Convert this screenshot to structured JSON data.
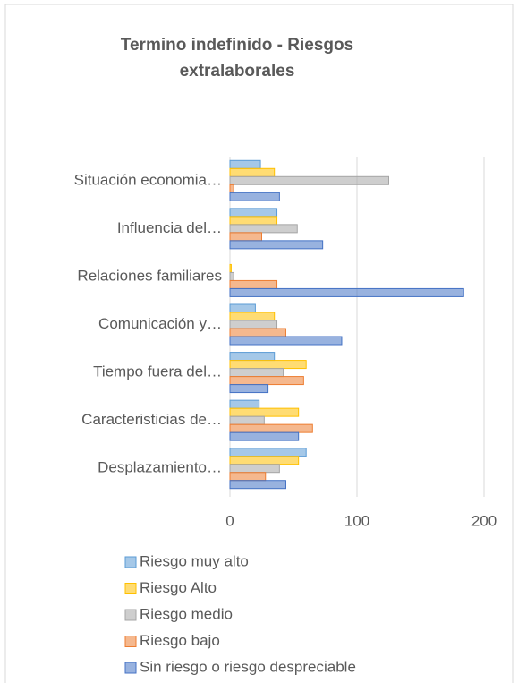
{
  "chart_data": {
    "type": "bar",
    "orientation": "horizontal",
    "title": "Termino indefinido - Riesgos extralaborales",
    "categories": [
      "Situación economia…",
      "Influencia del…",
      "Relaciones familiares",
      "Comunicación y…",
      "Tiempo fuera del…",
      "Caracteristicias de…",
      "Desplazamiento…"
    ],
    "series": [
      {
        "name": "Riesgo muy alto",
        "color": "#5b9bd5",
        "values": [
          24,
          37,
          0,
          20,
          35,
          23,
          60
        ]
      },
      {
        "name": "Riesgo Alto",
        "color": "#ffc000",
        "values": [
          35,
          37,
          1,
          35,
          60,
          54,
          54
        ]
      },
      {
        "name": "Riesgo medio",
        "color": "#a5a5a5",
        "values": [
          125,
          53,
          3,
          37,
          42,
          27,
          39
        ]
      },
      {
        "name": "Riesgo bajo",
        "color": "#ed7d31",
        "values": [
          3,
          25,
          37,
          44,
          58,
          65,
          28
        ]
      },
      {
        "name": "Sin riesgo o riesgo despreciable",
        "color": "#4472c4",
        "values": [
          39,
          73,
          184,
          88,
          30,
          54,
          44
        ]
      }
    ],
    "xlim": [
      0,
      200
    ],
    "xticks": [
      0,
      100,
      200
    ],
    "grid": true
  }
}
